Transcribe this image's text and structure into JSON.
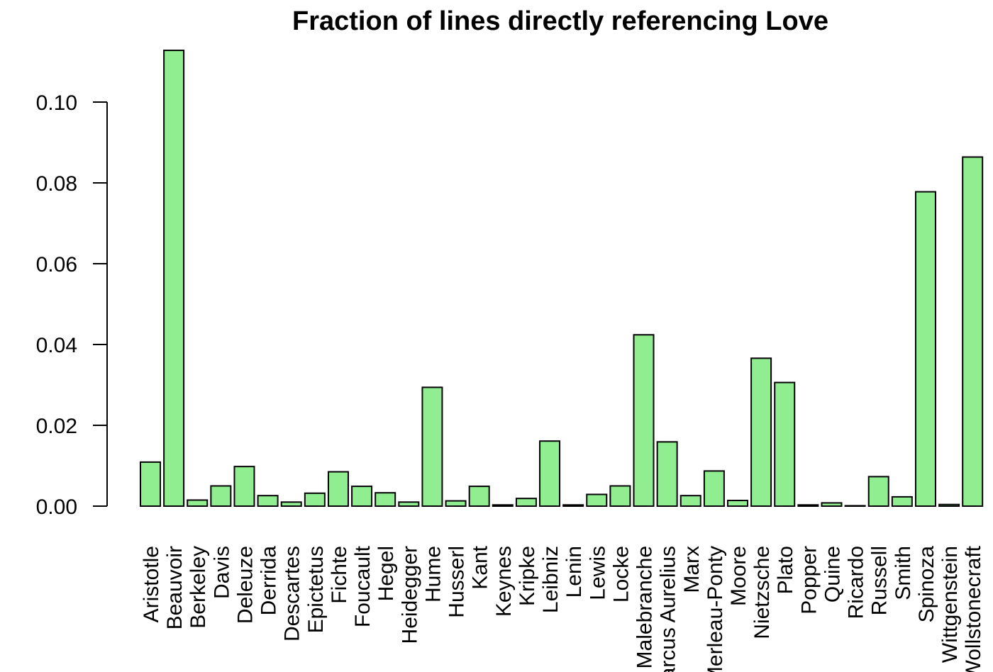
{
  "chart_data": {
    "type": "bar",
    "title": "Fraction of lines directly referencing Love",
    "xlabel": "",
    "ylabel": "",
    "ylim": [
      0,
      0.11
    ],
    "yticks": [
      0.0,
      0.02,
      0.04,
      0.06,
      0.08,
      0.1
    ],
    "ytick_labels": [
      "0.00",
      "0.02",
      "0.04",
      "0.06",
      "0.08",
      "0.10"
    ],
    "bar_color": "#90ee90",
    "grid": false,
    "categories": [
      "Aristotle",
      "Beauvoir",
      "Berkeley",
      "Davis",
      "Deleuze",
      "Derrida",
      "Descartes",
      "Epictetus",
      "Fichte",
      "Foucault",
      "Hegel",
      "Heidegger",
      "Hume",
      "Husserl",
      "Kant",
      "Keynes",
      "Kripke",
      "Leibniz",
      "Lenin",
      "Lewis",
      "Locke",
      "Malebranche",
      "Marcus Aurelius",
      "Marx",
      "Merleau-Ponty",
      "Moore",
      "Nietzsche",
      "Plato",
      "Popper",
      "Quine",
      "Ricardo",
      "Russell",
      "Smith",
      "Spinoza",
      "Wittgenstein",
      "Wollstonecraft"
    ],
    "values": [
      0.0109,
      0.1128,
      0.0015,
      0.005,
      0.0098,
      0.0026,
      0.001,
      0.0032,
      0.0085,
      0.0049,
      0.0033,
      0.001,
      0.0294,
      0.0013,
      0.0049,
      0.0003,
      0.0019,
      0.0161,
      0.0003,
      0.0029,
      0.005,
      0.0424,
      0.0159,
      0.0026,
      0.0087,
      0.0014,
      0.0366,
      0.0306,
      0.0003,
      0.0008,
      0.0001,
      0.0073,
      0.0023,
      0.0778,
      0.0004,
      0.0864
    ]
  }
}
